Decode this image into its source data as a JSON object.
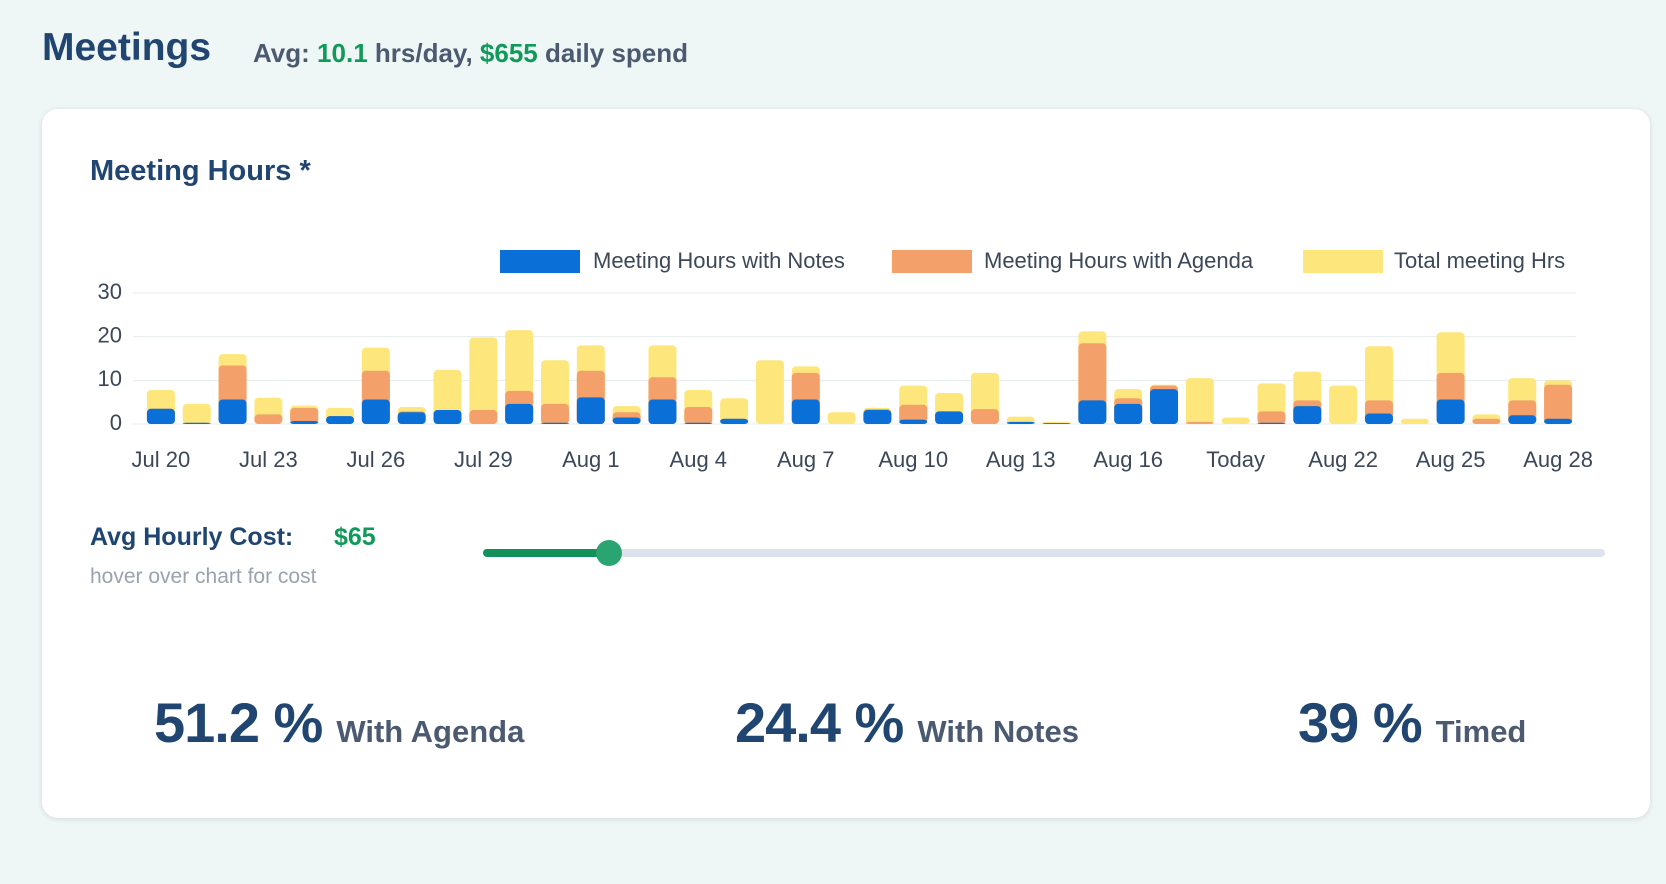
{
  "header": {
    "title": "Meetings",
    "avg_label": "Avg:",
    "avg_hours": "10.1",
    "hours_unit": "hrs/day,",
    "daily_spend": "$655",
    "spend_label": "daily spend"
  },
  "chart_data": {
    "type": "bar",
    "title": "Meeting Hours *",
    "categories": [
      "Jul 20",
      null,
      null,
      "Jul 23",
      null,
      null,
      "Jul 26",
      null,
      null,
      "Jul 29",
      null,
      null,
      "Aug 1",
      null,
      null,
      "Aug 4",
      null,
      null,
      "Aug 7",
      null,
      null,
      "Aug 10",
      null,
      null,
      "Aug 13",
      null,
      null,
      "Aug 16",
      null,
      null,
      "Today",
      null,
      null,
      "Aug 22",
      null,
      null,
      "Aug 25",
      null,
      null,
      "Aug 28"
    ],
    "series": [
      {
        "name": "Meeting Hours with Notes",
        "color": "#0a6fd6",
        "values": [
          3.5,
          0.3,
          5.6,
          0,
          0.7,
          1.8,
          5.6,
          2.7,
          3.2,
          0,
          4.6,
          0.3,
          6.1,
          1.5,
          5.6,
          0.3,
          1.2,
          0,
          5.6,
          0,
          3.2,
          1,
          2.9,
          0,
          0.5,
          0.2,
          5.4,
          4.6,
          8,
          0,
          0,
          0.3,
          4.1,
          0,
          2.4,
          0,
          5.6,
          0,
          2,
          1.2
        ]
      },
      {
        "name": "Meeting Hours with Agenda",
        "color": "#f3a06b",
        "values": [
          3.5,
          0,
          13.4,
          2.2,
          3.7,
          1.8,
          12.2,
          2.9,
          0,
          3.2,
          7.6,
          4.6,
          12.2,
          2.7,
          10.7,
          3.9,
          0,
          0,
          11.7,
          0,
          3.4,
          4.4,
          0,
          3.4,
          0,
          0,
          18.5,
          5.9,
          8.8,
          0.5,
          0,
          2.9,
          5.4,
          0,
          5.4,
          0,
          11.7,
          1.2,
          5.4,
          9
        ]
      },
      {
        "name": "Total meeting Hrs",
        "color": "#fde67c",
        "values": [
          7.8,
          4.6,
          16,
          6,
          4.2,
          3.7,
          17.5,
          3.9,
          12.4,
          19.8,
          21.5,
          14.6,
          18,
          4.1,
          18,
          7.8,
          5.9,
          14.6,
          13.2,
          2.7,
          3.7,
          8.8,
          7.1,
          11.7,
          1.7,
          0.5,
          21.2,
          8,
          9,
          10.5,
          1.5,
          9.3,
          12,
          8.8,
          17.8,
          1.2,
          21,
          2.2,
          10.5,
          10
        ]
      }
    ],
    "ylim": [
      0,
      30
    ],
    "yticks": [
      0,
      10,
      20,
      30
    ],
    "grid": true
  },
  "cost": {
    "label": "Avg Hourly Cost:",
    "value": "$65",
    "hint": "hover over chart for cost"
  },
  "stats": [
    {
      "value": "51.2 %",
      "label": "With Agenda"
    },
    {
      "value": "24.4 %",
      "label": "With Notes"
    },
    {
      "value": "39 %",
      "label": "Timed"
    }
  ]
}
